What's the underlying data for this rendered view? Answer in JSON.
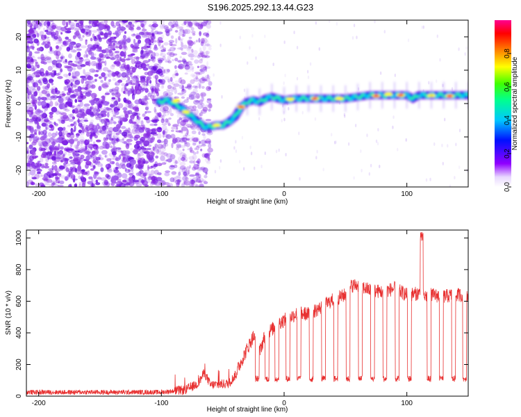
{
  "title": "S196.2025.292.13.44.G23",
  "chart_data": [
    {
      "type": "heatmap",
      "xlabel": "Height of straight line (km)",
      "ylabel": "Frequency (Hz)",
      "xlim": [
        -210,
        150
      ],
      "ylim": [
        -25,
        25
      ],
      "xticks": [
        -200,
        -100,
        0,
        100
      ],
      "yticks": [
        -20,
        -10,
        0,
        10,
        20
      ],
      "colorbar": {
        "label": "Normalized spectral amplitude",
        "range": [
          0,
          1
        ],
        "ticks": [
          "0.0",
          "0.2",
          "0.4",
          "0.6",
          "0.8"
        ],
        "colors": [
          "#ffffff",
          "#c8a8f8",
          "#8000ff",
          "#0000ff",
          "#00c8ff",
          "#00ff80",
          "#40ff00",
          "#ffff00",
          "#ff8000",
          "#ff0000",
          "#ff0080"
        ]
      },
      "ridge": {
        "x": [
          -102,
          -95,
          -90,
          -85,
          -80,
          -75,
          -70,
          -65,
          -60,
          -55,
          -50,
          -45,
          -40,
          -35,
          -30,
          -25,
          -20,
          -15,
          -10,
          -5,
          0,
          10,
          20,
          30,
          40,
          50,
          60,
          70,
          80,
          90,
          100,
          105,
          110,
          120,
          130,
          140,
          150
        ],
        "y": [
          0.5,
          1,
          0,
          -1,
          -2.5,
          -4,
          -5.5,
          -7,
          -7,
          -6.5,
          -6.5,
          -5.5,
          -4,
          -1,
          0.5,
          1,
          0.5,
          1.5,
          2,
          1.5,
          1,
          1.5,
          1.5,
          1.5,
          1.5,
          1.5,
          2,
          2.5,
          2.5,
          2.5,
          2.5,
          1.5,
          2.5,
          2.5,
          2.5,
          2.5,
          2.5
        ]
      }
    },
    {
      "type": "line",
      "xlabel": "Height of straight line (km)",
      "ylabel": "SNR (10 * v/v)",
      "xlim": [
        -210,
        150
      ],
      "ylim": [
        0,
        1050
      ],
      "xticks": [
        -200,
        -100,
        0,
        100
      ],
      "yticks": [
        0,
        200,
        400,
        600,
        800,
        1000
      ],
      "color": "#e83030",
      "envelope": {
        "x": [
          -210,
          -100,
          -80,
          -70,
          -65,
          -60,
          -45,
          -40,
          -35,
          -30,
          -25,
          -20,
          -15,
          -10,
          -5,
          0,
          10,
          20,
          30,
          40,
          50,
          55,
          60,
          70,
          80,
          90,
          100,
          110,
          115,
          120,
          130,
          140,
          150
        ],
        "y": [
          25,
          25,
          40,
          80,
          150,
          70,
          80,
          130,
          220,
          300,
          380,
          280,
          400,
          420,
          460,
          480,
          520,
          520,
          560,
          610,
          640,
          700,
          700,
          670,
          660,
          680,
          640,
          650,
          630,
          640,
          630,
          640,
          640
        ]
      },
      "dropouts": [
        -22,
        -14,
        -6,
        3,
        12,
        22,
        32,
        42,
        52,
        62,
        72,
        82,
        92,
        102,
        118,
        128,
        138,
        147
      ],
      "spike": {
        "x": 112,
        "y": 1050
      }
    }
  ]
}
